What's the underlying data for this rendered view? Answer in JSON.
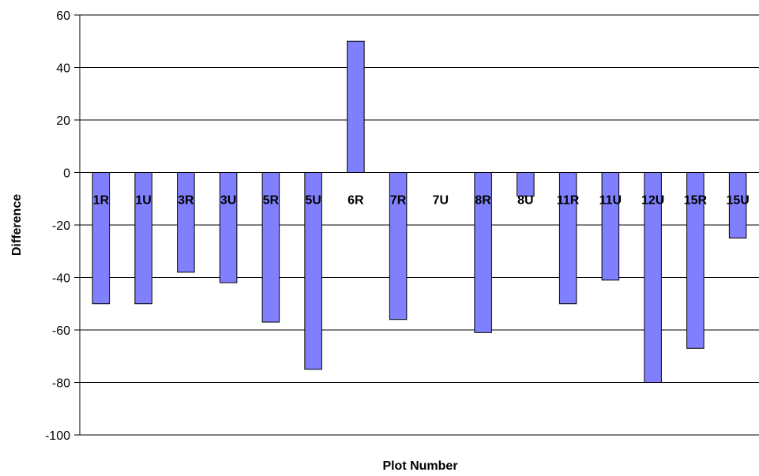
{
  "chart_data": {
    "type": "bar",
    "title": "",
    "xlabel": "Plot Number",
    "ylabel": "Difference",
    "ylim": [
      -100,
      60
    ],
    "yticks": [
      60,
      40,
      20,
      0,
      -20,
      -40,
      -60,
      -80,
      -100
    ],
    "grid": true,
    "legend": "none",
    "categories": [
      "1R",
      "1U",
      "3R",
      "3U",
      "5R",
      "5U",
      "6R",
      "7R",
      "7U",
      "8R",
      "8U",
      "11R",
      "11U",
      "12U",
      "15R",
      "15U"
    ],
    "series": [
      {
        "values": [
          -50,
          -50,
          -38,
          -42,
          -57,
          -75,
          50,
          -56,
          0,
          -61,
          -9,
          -50,
          -41,
          -80,
          -67,
          -25
        ],
        "color": "#8080ff"
      }
    ]
  }
}
